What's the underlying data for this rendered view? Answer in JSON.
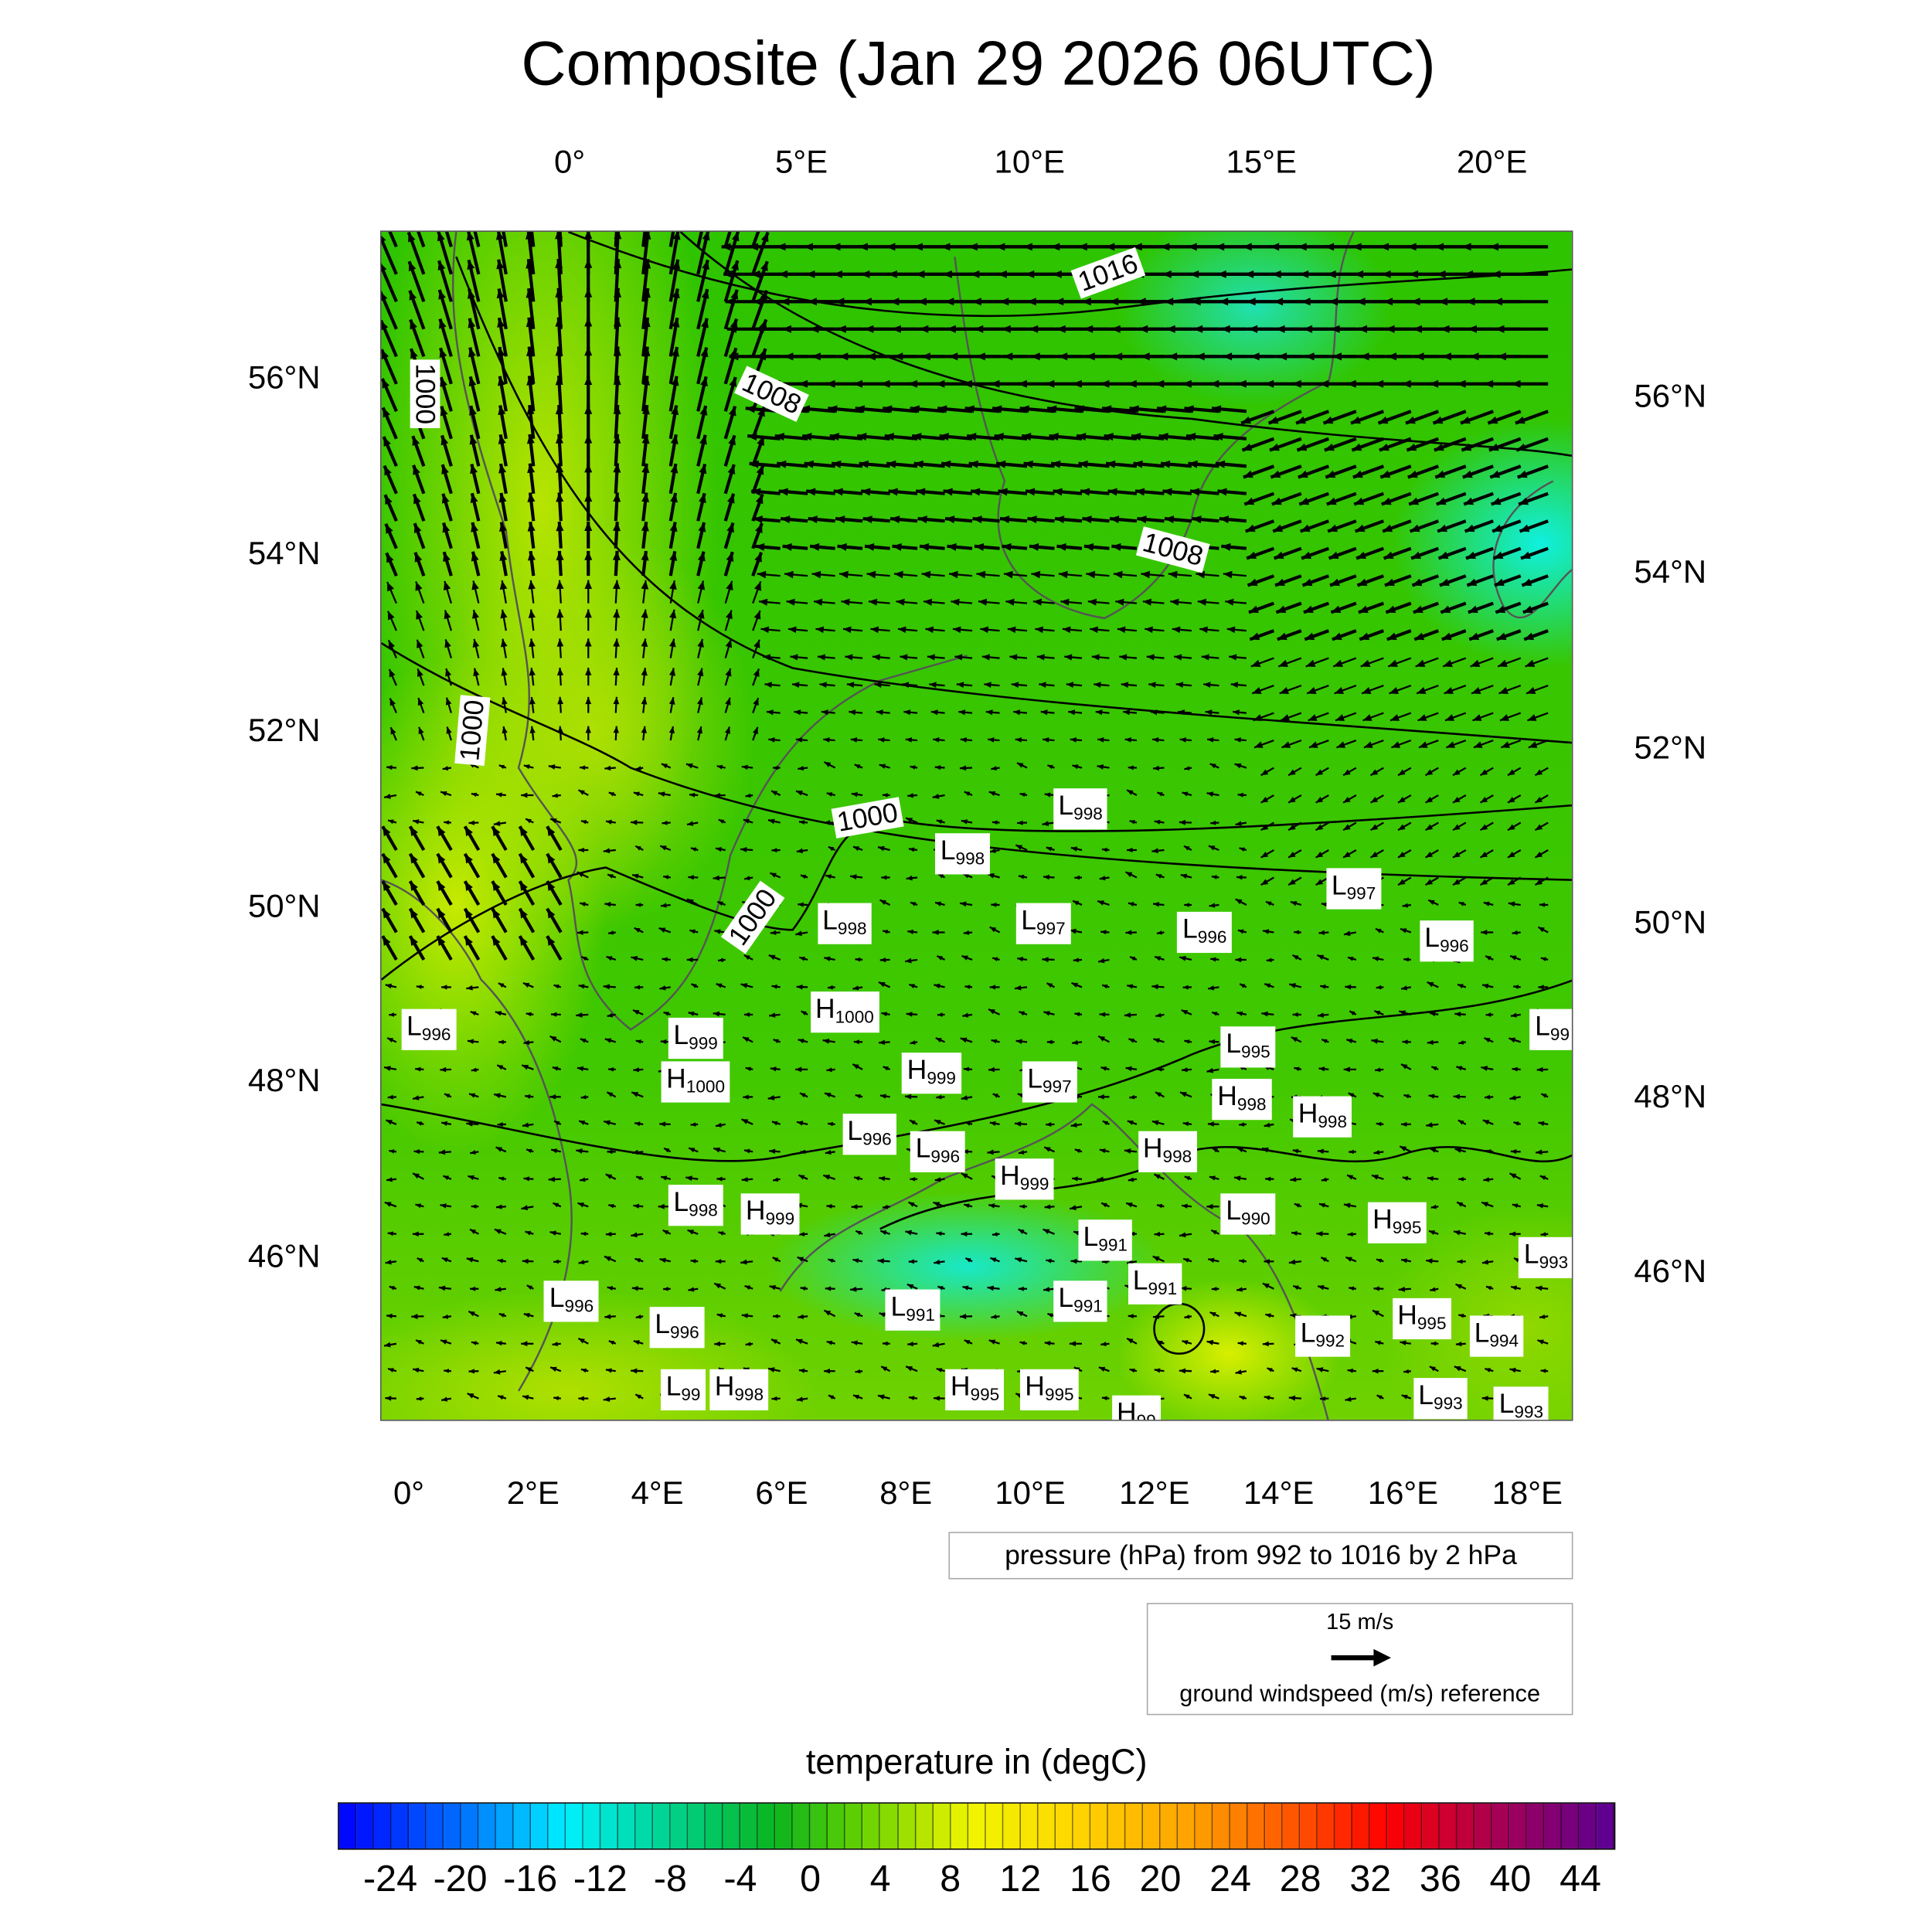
{
  "title": "Composite (Jan 29 2026 06UTC)",
  "axes": {
    "top": [
      {
        "label": "0°",
        "lon": 0
      },
      {
        "label": "5°E",
        "lon": 5
      },
      {
        "label": "10°E",
        "lon": 10
      },
      {
        "label": "15°E",
        "lon": 15
      },
      {
        "label": "20°E",
        "lon": 20
      }
    ],
    "bottom": [
      "0°",
      "2°E",
      "4°E",
      "6°E",
      "8°E",
      "10°E",
      "12°E",
      "14°E",
      "16°E",
      "18°E"
    ],
    "left": [
      "56°N",
      "54°N",
      "52°N",
      "50°N",
      "48°N",
      "46°N"
    ],
    "right": [
      "56°N",
      "54°N",
      "52°N",
      "50°N",
      "48°N",
      "46°N"
    ]
  },
  "contour_labels": [
    "1016",
    "1008",
    "1008",
    "1000",
    "1000",
    "1000",
    "1000"
  ],
  "pressure_centers": [
    {
      "t": "L",
      "v": "998",
      "lon": 10.8,
      "lat": 51.1
    },
    {
      "t": "L",
      "v": "998",
      "lon": 8.9,
      "lat": 50.6
    },
    {
      "t": "L",
      "v": "997",
      "lon": 15.2,
      "lat": 50.2
    },
    {
      "t": "L",
      "v": "998",
      "lon": 7.0,
      "lat": 49.8
    },
    {
      "t": "L",
      "v": "997",
      "lon": 10.2,
      "lat": 49.8
    },
    {
      "t": "L",
      "v": "996",
      "lon": 12.8,
      "lat": 49.7
    },
    {
      "t": "L",
      "v": "996",
      "lon": 16.7,
      "lat": 49.6
    },
    {
      "t": "H",
      "v": "1000",
      "lon": 7.0,
      "lat": 48.8
    },
    {
      "t": "L",
      "v": "996",
      "lon": 0.3,
      "lat": 48.6
    },
    {
      "t": "L",
      "v": "999",
      "lon": 4.6,
      "lat": 48.5
    },
    {
      "t": "L",
      "v": "99",
      "lon": 18.4,
      "lat": 48.6
    },
    {
      "t": "H",
      "v": "1000",
      "lon": 4.6,
      "lat": 48.0
    },
    {
      "t": "H",
      "v": "999",
      "lon": 8.4,
      "lat": 48.1
    },
    {
      "t": "L",
      "v": "997",
      "lon": 10.3,
      "lat": 48.0
    },
    {
      "t": "L",
      "v": "995",
      "lon": 13.5,
      "lat": 48.4
    },
    {
      "t": "H",
      "v": "998",
      "lon": 13.4,
      "lat": 47.8
    },
    {
      "t": "H",
      "v": "998",
      "lon": 14.7,
      "lat": 47.6
    },
    {
      "t": "L",
      "v": "996",
      "lon": 7.4,
      "lat": 47.4
    },
    {
      "t": "L",
      "v": "996",
      "lon": 8.5,
      "lat": 47.2
    },
    {
      "t": "H",
      "v": "998",
      "lon": 12.2,
      "lat": 47.2
    },
    {
      "t": "H",
      "v": "999",
      "lon": 9.9,
      "lat": 46.9
    },
    {
      "t": "L",
      "v": "998",
      "lon": 4.6,
      "lat": 46.6
    },
    {
      "t": "H",
      "v": "999",
      "lon": 5.8,
      "lat": 46.5
    },
    {
      "t": "L",
      "v": "990",
      "lon": 13.5,
      "lat": 46.5
    },
    {
      "t": "H",
      "v": "995",
      "lon": 15.9,
      "lat": 46.4
    },
    {
      "t": "L",
      "v": "991",
      "lon": 11.2,
      "lat": 46.2
    },
    {
      "t": "L",
      "v": "993",
      "lon": 18.3,
      "lat": 46.0
    },
    {
      "t": "L",
      "v": "991",
      "lon": 12.0,
      "lat": 45.7
    },
    {
      "t": "L",
      "v": "996",
      "lon": 2.6,
      "lat": 45.5
    },
    {
      "t": "L",
      "v": "991",
      "lon": 10.8,
      "lat": 45.5
    },
    {
      "t": "L",
      "v": "991",
      "lon": 8.1,
      "lat": 45.4
    },
    {
      "t": "L",
      "v": "996",
      "lon": 4.3,
      "lat": 45.2
    },
    {
      "t": "H",
      "v": "995",
      "lon": 16.3,
      "lat": 45.3
    },
    {
      "t": "L",
      "v": "992",
      "lon": 14.7,
      "lat": 45.1
    },
    {
      "t": "L",
      "v": "994",
      "lon": 17.5,
      "lat": 45.1
    },
    {
      "t": "L",
      "v": "99",
      "lon": 4.4,
      "lat": 44.5
    },
    {
      "t": "H",
      "v": "998",
      "lon": 5.3,
      "lat": 44.5
    },
    {
      "t": "H",
      "v": "995",
      "lon": 9.1,
      "lat": 44.5
    },
    {
      "t": "H",
      "v": "995",
      "lon": 10.3,
      "lat": 44.5
    },
    {
      "t": "L",
      "v": "993",
      "lon": 16.6,
      "lat": 44.4
    },
    {
      "t": "L",
      "v": "993",
      "lon": 17.9,
      "lat": 44.3
    },
    {
      "t": "H",
      "v": "99",
      "lon": 11.7,
      "lat": 44.2
    }
  ],
  "pressure_legend": "pressure (hPa) from 992 to 1016 by 2 hPa",
  "wind_legend": {
    "speed": "15 m/s",
    "label": "ground windspeed (m/s) reference"
  },
  "colorbar": {
    "title": "temperature in (degC)",
    "min": -27,
    "max": 46,
    "labels": [
      "-24",
      "-20",
      "-16",
      "-12",
      "-8",
      "-4",
      "0",
      "4",
      "8",
      "12",
      "16",
      "20",
      "24",
      "28",
      "32",
      "36",
      "40",
      "44"
    ]
  }
}
